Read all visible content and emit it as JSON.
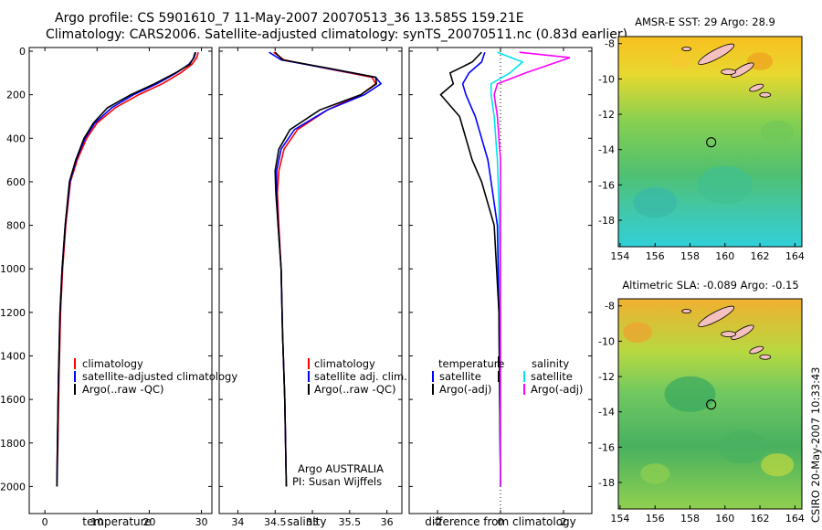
{
  "header": {
    "line1": "Argo profile: CS 5901610_7 11-May-2007 20070513_36 13.585S 159.21E",
    "line2": "Climatology: CARS2006. Satellite-adjusted climatology: synTS_20070511.nc (0.83d earlier)"
  },
  "credit": {
    "org": "Argo AUSTRALIA",
    "pi": "PI: Susan Wijffels"
  },
  "footer": {
    "stamp": "CSIRO 20-May-2007 10:33:43"
  },
  "depth_ticks": [
    "0",
    "200",
    "400",
    "600",
    "800",
    "1000",
    "1200",
    "1400",
    "1600",
    "1800",
    "2000"
  ],
  "colors": {
    "climatology": "#ff0000",
    "satellite": "#0000ff",
    "argo": "#000000",
    "sal_satellite": "#00e5ee",
    "sal_argo": "#ff00ff",
    "land": "#f4c0c0"
  },
  "maps": [
    {
      "title": "AMSR-E SST: 29 Argo: 28.9",
      "x_ticks": [
        "154",
        "156",
        "158",
        "160",
        "162",
        "164"
      ],
      "y_ticks": [
        "-8",
        "-10",
        "-12",
        "-14",
        "-16",
        "-18"
      ]
    },
    {
      "title": "Altimetric SLA: -0.089 Argo: -0.15",
      "x_ticks": [
        "154",
        "156",
        "158",
        "160",
        "162",
        "164"
      ],
      "y_ticks": [
        "-8",
        "-10",
        "-12",
        "-14",
        "-16",
        "-18"
      ]
    }
  ],
  "chart_data": [
    {
      "type": "line",
      "xlabel": "temperature",
      "xlim": [
        -3,
        32
      ],
      "ylim": [
        2050,
        0
      ],
      "x_ticks": [
        "0",
        "10",
        "20",
        "30"
      ],
      "legend": [
        "climatology",
        "satellite-adjusted climatology",
        "Argo(..raw -QC)"
      ],
      "series": [
        {
          "name": "climatology",
          "x": [
            29.4,
            29.1,
            28.2,
            26.0,
            22.5,
            18.0,
            13.5,
            10.0,
            8.0,
            6.2,
            4.9,
            4.0,
            3.4,
            3.0,
            2.7,
            2.5,
            2.3
          ],
          "y": [
            5,
            30,
            60,
            100,
            150,
            200,
            260,
            330,
            400,
            500,
            600,
            800,
            1000,
            1200,
            1500,
            1800,
            2000
          ]
        },
        {
          "name": "satellite-adjusted climatology",
          "x": [
            28.9,
            28.6,
            27.6,
            25.2,
            21.5,
            17.0,
            12.8,
            9.6,
            7.7,
            6.0,
            4.8,
            3.9,
            3.3,
            2.9,
            2.6,
            2.4,
            2.3
          ],
          "y": [
            5,
            30,
            60,
            100,
            150,
            200,
            260,
            330,
            400,
            500,
            600,
            800,
            1000,
            1200,
            1500,
            1800,
            2000
          ]
        },
        {
          "name": "Argo(..raw -QC)",
          "x": [
            28.8,
            28.5,
            27.8,
            25.0,
            21.0,
            16.5,
            12.0,
            9.3,
            7.5,
            5.9,
            4.7,
            3.9,
            3.3,
            2.9,
            2.6,
            2.4,
            2.3
          ],
          "y": [
            5,
            30,
            60,
            100,
            150,
            200,
            260,
            330,
            400,
            500,
            600,
            800,
            1000,
            1200,
            1500,
            1800,
            2000
          ]
        }
      ]
    },
    {
      "type": "line",
      "xlabel": "salinity",
      "xlim": [
        33.75,
        36.2
      ],
      "ylim": [
        2050,
        0
      ],
      "x_ticks": [
        "34",
        "34.5",
        "35",
        "35.5",
        "36"
      ],
      "legend": [
        "climatology",
        "satellite adj. clim.",
        "Argo(..raw -QC)"
      ],
      "series": [
        {
          "name": "climatology",
          "x": [
            34.48,
            34.62,
            35.2,
            35.8,
            35.85,
            35.65,
            35.2,
            34.8,
            34.62,
            34.55,
            34.53,
            34.55,
            34.58,
            34.6,
            34.63,
            34.65
          ],
          "y": [
            5,
            40,
            80,
            120,
            150,
            200,
            270,
            360,
            450,
            550,
            650,
            800,
            1000,
            1300,
            1600,
            2000
          ]
        },
        {
          "name": "satellite adj. clim.",
          "x": [
            34.42,
            34.58,
            35.22,
            35.85,
            35.92,
            35.7,
            35.2,
            34.76,
            34.58,
            34.52,
            34.52,
            34.54,
            34.58,
            34.6,
            34.63,
            34.65
          ],
          "y": [
            5,
            40,
            80,
            120,
            150,
            200,
            270,
            360,
            450,
            550,
            650,
            800,
            1000,
            1300,
            1600,
            2000
          ]
        },
        {
          "name": "Argo(..raw -QC)",
          "x": [
            34.5,
            34.6,
            35.25,
            35.85,
            35.86,
            35.65,
            35.1,
            34.7,
            34.55,
            34.5,
            34.51,
            34.54,
            34.58,
            34.6,
            34.63,
            34.65
          ],
          "y": [
            5,
            40,
            80,
            120,
            150,
            200,
            270,
            360,
            450,
            550,
            650,
            800,
            1000,
            1300,
            1600,
            2000
          ]
        }
      ]
    },
    {
      "type": "line",
      "xlabel": "difference from climatology",
      "xlim": [
        -2.9,
        2.9
      ],
      "ylim": [
        2050,
        0
      ],
      "x_ticks": [
        "-2",
        "0",
        "2"
      ],
      "legend_groups": [
        {
          "title": "temperature",
          "items": [
            "satellite",
            "Argo(-adj)"
          ]
        },
        {
          "title": "salinity",
          "items": [
            "satellite",
            "Argo(-adj)"
          ]
        }
      ],
      "series": [
        {
          "name": "satellite",
          "x": [
            -0.5,
            -0.6,
            -1.0,
            -1.2,
            -1.1,
            -0.8,
            -0.6,
            -0.4,
            -0.3,
            -0.1,
            -0.05,
            0.0
          ],
          "y": [
            5,
            50,
            100,
            150,
            200,
            300,
            400,
            500,
            600,
            800,
            1200,
            2000
          ]
        },
        {
          "name": "Argo(-adj)",
          "x": [
            -0.6,
            -0.9,
            -1.6,
            -1.5,
            -1.9,
            -1.3,
            -1.1,
            -0.9,
            -0.6,
            -0.2,
            -0.05,
            0.0
          ],
          "y": [
            5,
            50,
            100,
            150,
            200,
            300,
            400,
            500,
            600,
            800,
            1200,
            2000
          ]
        },
        {
          "name": "satellite",
          "x": [
            -0.1,
            0.7,
            0.3,
            -0.3,
            -0.3,
            -0.2,
            -0.15,
            -0.1,
            -0.05,
            0.0,
            0.0
          ],
          "y": [
            5,
            50,
            100,
            150,
            200,
            300,
            400,
            500,
            700,
            1200,
            2000
          ]
        },
        {
          "name": "Argo(-adj)",
          "x": [
            0.6,
            2.2,
            0.8,
            -0.1,
            -0.2,
            -0.1,
            0.0,
            0.0,
            0.0,
            0.0
          ],
          "y": [
            5,
            30,
            100,
            150,
            200,
            300,
            500,
            700,
            1200,
            2000
          ]
        }
      ]
    }
  ]
}
